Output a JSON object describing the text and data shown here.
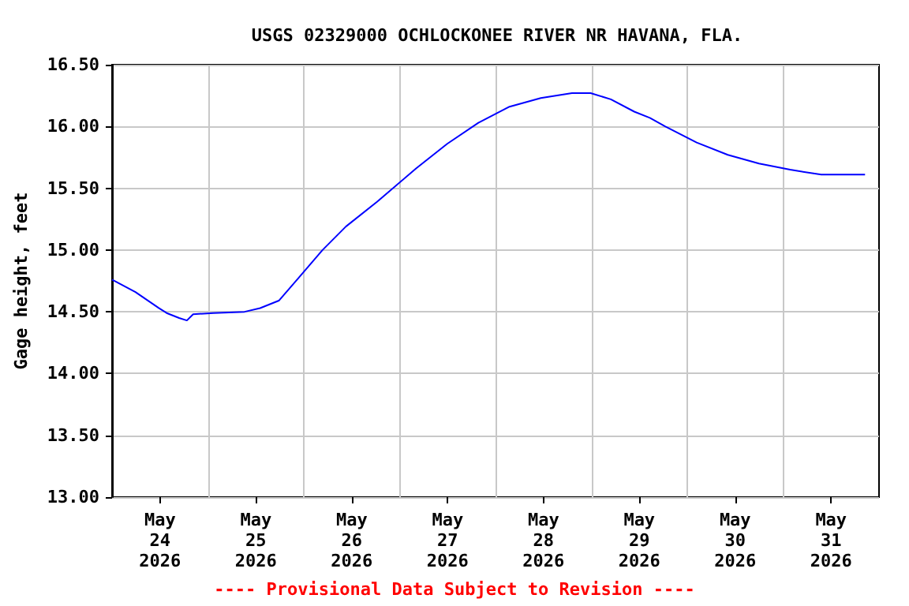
{
  "chart_data": {
    "type": "line",
    "title": "USGS 02329000 OCHLOCKONEE RIVER NR HAVANA, FLA.",
    "ylabel": "Gage height, feet",
    "annotations": [
      "---- Provisional Data Subject to Revision ----"
    ],
    "x": [
      "2026-05-24T00:00",
      "2026-05-24T05:51",
      "2026-05-24T11:42",
      "2026-05-24T13:40",
      "2026-05-24T16:47",
      "2026-05-24T18:44",
      "2026-05-24T20:18",
      "2026-05-25T01:22",
      "2026-05-25T09:10",
      "2026-05-25T13:04",
      "2026-05-25T17:45",
      "2026-05-25T22:50",
      "2026-05-26T04:41",
      "2026-05-26T10:32",
      "2026-05-26T18:20",
      "2026-05-27T04:06",
      "2026-05-27T11:54",
      "2026-05-27T19:42",
      "2026-05-28T03:30",
      "2026-05-28T11:20",
      "2026-05-28T19:08",
      "2026-05-28T23:48",
      "2026-05-29T04:52",
      "2026-05-29T10:44",
      "2026-05-29T14:38",
      "2026-05-29T18:32",
      "2026-05-30T02:21",
      "2026-05-30T10:09",
      "2026-05-30T17:57",
      "2026-05-31T01:45",
      "2026-05-31T09:33",
      "2026-05-31T20:30"
    ],
    "series": [
      {
        "color": "#0000ff",
        "values": [
          14.76,
          14.66,
          14.53,
          14.49,
          14.45,
          14.43,
          14.48,
          14.49,
          14.5,
          14.53,
          14.59,
          14.78,
          15.0,
          15.19,
          15.39,
          15.66,
          15.86,
          16.03,
          16.16,
          16.23,
          16.27,
          16.27,
          16.22,
          16.12,
          16.07,
          16.0,
          15.87,
          15.77,
          15.7,
          15.65,
          15.61,
          15.61
        ]
      }
    ],
    "xlim": [
      "2026-05-24",
      "2026-06-01"
    ],
    "xticks": [
      {
        "value": "2026-05-24T12:00",
        "label": "May\n24\n2026"
      },
      {
        "value": "2026-05-25",
        "label": null
      },
      {
        "value": "2026-05-25T12:00",
        "label": "May\n25\n2026"
      },
      {
        "value": "2026-05-26",
        "label": null
      },
      {
        "value": "2026-05-26T12:00",
        "label": "May\n26\n2026"
      },
      {
        "value": "2026-05-27",
        "label": null
      },
      {
        "value": "2026-05-27T12:00",
        "label": "May\n27\n2026"
      },
      {
        "value": "2026-05-28",
        "label": null
      },
      {
        "value": "2026-05-28T12:00",
        "label": "May\n28\n2026"
      },
      {
        "value": "2026-05-29",
        "label": null
      },
      {
        "value": "2026-05-29T12:00",
        "label": "May\n29\n2026"
      },
      {
        "value": "2026-05-30",
        "label": null
      },
      {
        "value": "2026-05-30T12:00",
        "label": "May\n30\n2026"
      },
      {
        "value": "2026-05-31",
        "label": null
      },
      {
        "value": "2026-05-31T12:00",
        "label": "May\n31\n2026"
      }
    ],
    "ylim": [
      13,
      16.5
    ],
    "yticks": [
      {
        "value": 13,
        "label": "13.00"
      },
      {
        "value": 13.5,
        "label": "13.50"
      },
      {
        "value": 14,
        "label": "14.00"
      },
      {
        "value": 14.5,
        "label": "14.50"
      },
      {
        "value": 15,
        "label": "15.00"
      },
      {
        "value": 15.5,
        "label": "15.50"
      },
      {
        "value": 16,
        "label": "16.00"
      },
      {
        "value": 16.5,
        "label": "16.50"
      }
    ],
    "grid": true,
    "marker": "none",
    "line_style": "solid"
  }
}
